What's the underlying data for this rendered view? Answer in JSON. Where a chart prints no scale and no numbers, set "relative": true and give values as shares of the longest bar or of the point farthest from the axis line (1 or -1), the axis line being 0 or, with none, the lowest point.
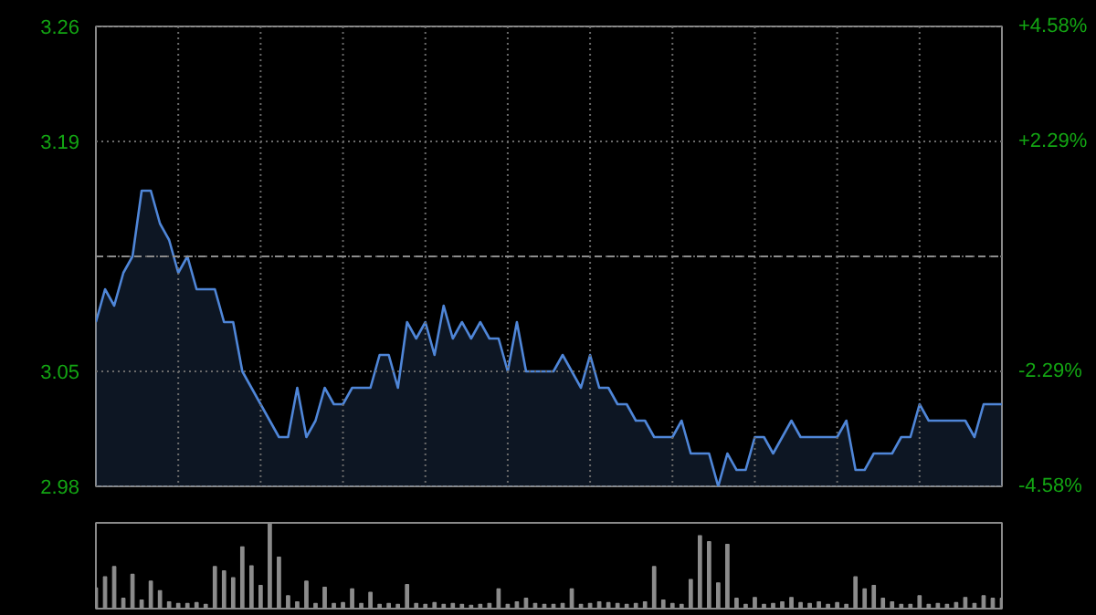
{
  "chart_data": [
    {
      "type": "area",
      "categories": [
        null,
        null,
        null,
        null,
        null,
        null,
        null,
        null,
        null,
        null,
        null,
        null,
        null,
        null,
        null,
        null,
        null,
        null,
        null,
        null,
        null,
        null,
        null,
        null,
        null,
        null,
        null,
        null,
        null,
        null,
        null,
        null,
        null,
        null,
        null,
        null,
        null,
        null,
        null,
        null,
        null,
        null,
        null,
        null,
        null,
        null,
        null,
        null,
        null,
        null,
        null,
        null,
        null,
        null,
        null,
        null,
        null,
        null,
        null,
        null,
        null,
        null,
        null,
        null,
        null,
        null,
        null,
        null,
        null,
        null,
        null,
        null,
        null,
        null,
        null,
        null,
        null,
        null,
        null,
        null,
        null,
        null,
        null,
        null,
        null,
        null,
        null,
        null,
        null,
        null,
        null,
        null,
        null,
        null,
        null,
        null,
        null,
        null,
        null,
        null
      ],
      "series": [
        {
          "color": "#4f86d8",
          "values": [
            3.08,
            3.1,
            3.09,
            3.11,
            3.12,
            3.16,
            3.16,
            3.14,
            3.13,
            3.11,
            3.12,
            3.1,
            3.1,
            3.1,
            3.08,
            3.08,
            3.05,
            3.04,
            3.03,
            3.02,
            3.01,
            3.01,
            3.04,
            3.01,
            3.02,
            3.04,
            3.03,
            3.03,
            3.04,
            3.04,
            3.04,
            3.06,
            3.06,
            3.04,
            3.08,
            3.07,
            3.08,
            3.06,
            3.09,
            3.07,
            3.08,
            3.07,
            3.08,
            3.07,
            3.07,
            3.05,
            3.08,
            3.05,
            3.05,
            3.05,
            3.05,
            3.06,
            3.05,
            3.04,
            3.06,
            3.04,
            3.04,
            3.03,
            3.03,
            3.02,
            3.02,
            3.01,
            3.01,
            3.01,
            3.02,
            3.0,
            3.0,
            3.0,
            2.98,
            3.0,
            2.99,
            2.99,
            3.01,
            3.01,
            3.0,
            3.01,
            3.02,
            3.01,
            3.01,
            3.01,
            3.01,
            3.01,
            3.02,
            2.99,
            2.99,
            3.0,
            3.0,
            3.0,
            3.01,
            3.01,
            3.03,
            3.02,
            3.02,
            3.02,
            3.02,
            3.02,
            3.01,
            3.03,
            3.03,
            3.03
          ]
        }
      ],
      "ylim": [
        2.98,
        3.26
      ],
      "yticks": [
        2.98,
        3.05,
        {
          "value": 3.12,
          "label": null
        },
        3.19,
        3.26
      ],
      "y2lim": [
        -4.58,
        4.58
      ],
      "y2ticks": [
        {
          "value": -4.58,
          "label": "-4.58%"
        },
        {
          "value": -2.29,
          "label": "-2.29%"
        },
        {
          "value": 0,
          "label": null
        },
        {
          "value": 2.29,
          "label": "+2.29%"
        },
        {
          "value": 4.58,
          "label": "+4.58%"
        }
      ],
      "ref_lines": [
        {
          "axis": "y",
          "value": 3.12,
          "color": "#8c8c8c",
          "line_style": "dashed"
        }
      ],
      "grid": true,
      "tick_labels": "y"
    },
    {
      "type": "bar",
      "relative": true,
      "categories": [
        null,
        null,
        null,
        null,
        null,
        null,
        null,
        null,
        null,
        null,
        null,
        null,
        null,
        null,
        null,
        null,
        null,
        null,
        null,
        null,
        null,
        null,
        null,
        null,
        null,
        null,
        null,
        null,
        null,
        null,
        null,
        null,
        null,
        null,
        null,
        null,
        null,
        null,
        null,
        null,
        null,
        null,
        null,
        null,
        null,
        null,
        null,
        null,
        null,
        null,
        null,
        null,
        null,
        null,
        null,
        null,
        null,
        null,
        null,
        null,
        null,
        null,
        null,
        null,
        null,
        null,
        null,
        null,
        null,
        null,
        null,
        null,
        null,
        null,
        null,
        null,
        null,
        null,
        null,
        null,
        null,
        null,
        null,
        null,
        null,
        null,
        null,
        null,
        null,
        null,
        null,
        null,
        null,
        null,
        null,
        null,
        null,
        null,
        null,
        null
      ],
      "series": [
        {
          "color": "#8c8c8c",
          "values": [
            0.24,
            0.37,
            0.49,
            0.12,
            0.4,
            0.1,
            0.32,
            0.21,
            0.08,
            0.06,
            0.06,
            0.07,
            0.05,
            0.49,
            0.44,
            0.36,
            0.72,
            0.5,
            0.27,
            1.0,
            0.6,
            0.15,
            0.08,
            0.32,
            0.06,
            0.25,
            0.06,
            0.07,
            0.23,
            0.06,
            0.19,
            0.05,
            0.06,
            0.05,
            0.28,
            0.06,
            0.05,
            0.07,
            0.05,
            0.06,
            0.05,
            0.04,
            0.05,
            0.06,
            0.23,
            0.05,
            0.08,
            0.12,
            0.06,
            0.05,
            0.05,
            0.06,
            0.23,
            0.05,
            0.06,
            0.08,
            0.07,
            0.06,
            0.05,
            0.06,
            0.08,
            0.49,
            0.1,
            0.06,
            0.05,
            0.34,
            0.85,
            0.78,
            0.3,
            0.75,
            0.12,
            0.05,
            0.13,
            0.05,
            0.06,
            0.08,
            0.13,
            0.07,
            0.06,
            0.08,
            0.05,
            0.07,
            0.05,
            0.37,
            0.23,
            0.27,
            0.12,
            0.08,
            0.05,
            0.05,
            0.15,
            0.05,
            0.06,
            0.05,
            0.07,
            0.13,
            0.06,
            0.15,
            0.12,
            0.12
          ]
        }
      ],
      "tick_labels": false
    }
  ]
}
